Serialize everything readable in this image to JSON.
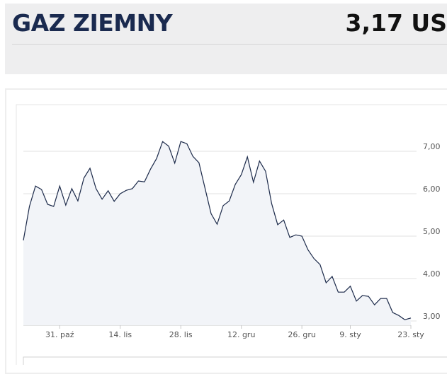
{
  "header": {
    "title": "GAZ ZIEMNY",
    "price": "3,17 US"
  },
  "chart_data": {
    "type": "area",
    "categories": [
      null,
      null,
      null,
      null,
      null,
      null,
      "31. paź",
      null,
      null,
      null,
      null,
      null,
      null,
      null,
      null,
      null,
      "14. lis",
      null,
      null,
      null,
      null,
      null,
      null,
      null,
      null,
      null,
      "28. lis",
      null,
      null,
      null,
      null,
      null,
      null,
      null,
      null,
      null,
      "12. gru",
      null,
      null,
      null,
      null,
      null,
      null,
      null,
      null,
      null,
      "26. gru",
      null,
      null,
      null,
      null,
      null,
      null,
      null,
      "9. sty",
      null,
      null,
      null,
      null,
      null,
      null,
      null,
      null,
      null,
      "23. sty"
    ],
    "series": [
      {
        "color": "#1c2a4a",
        "values": [
          4.9,
          5.7,
          6.18,
          6.1,
          5.75,
          5.7,
          6.18,
          5.73,
          6.12,
          5.83,
          6.37,
          6.6,
          6.12,
          5.87,
          6.07,
          5.82,
          6.0,
          6.08,
          6.12,
          6.3,
          6.28,
          6.58,
          6.83,
          7.23,
          7.12,
          6.72,
          7.23,
          7.18,
          6.88,
          6.73,
          6.13,
          5.53,
          5.28,
          5.72,
          5.83,
          6.22,
          6.45,
          6.87,
          6.27,
          6.77,
          6.53,
          5.77,
          5.27,
          5.38,
          4.97,
          5.03,
          5.0,
          4.68,
          4.47,
          4.33,
          3.9,
          4.05,
          3.68,
          3.68,
          3.82,
          3.47,
          3.6,
          3.58,
          3.38,
          3.53,
          3.53,
          3.2,
          3.13,
          3.03,
          3.07
        ]
      }
    ],
    "ylim": [
      2.9,
      8.0
    ],
    "yticks": [
      {
        "value": 3,
        "label": "3,00"
      },
      {
        "value": 4,
        "label": "4,00"
      },
      {
        "value": 5,
        "label": "5,00"
      },
      {
        "value": 6,
        "label": "6,00"
      },
      {
        "value": 7,
        "label": "7,00"
      }
    ],
    "grid": true
  }
}
